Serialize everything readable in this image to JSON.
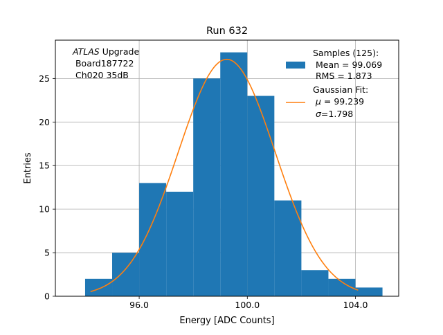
{
  "chart_data": {
    "type": "bar",
    "title": "Run 632",
    "xlabel": "Energy [ADC Counts]",
    "ylabel": "Entries",
    "xlim": [
      92.9,
      105.6
    ],
    "ylim": [
      0,
      29.4
    ],
    "xticks": [
      96,
      100,
      104
    ],
    "xtick_labels": [
      "96.0",
      "100.0",
      "104.0"
    ],
    "yticks": [
      0,
      5,
      10,
      15,
      20,
      25
    ],
    "ytick_labels": [
      "0",
      "5",
      "10",
      "15",
      "20",
      "25"
    ],
    "grid": true,
    "legend_position": "top-right",
    "histogram": {
      "bin_edges": [
        94,
        95,
        96,
        97,
        98,
        99,
        100,
        101,
        102,
        103,
        104,
        105
      ],
      "counts": [
        2,
        5,
        13,
        12,
        25,
        28,
        23,
        11,
        3,
        2,
        1
      ],
      "color": "#1f77b4"
    },
    "fit": {
      "type": "gaussian",
      "mu": 99.239,
      "sigma": 1.798,
      "peak": 27.2,
      "x_range": [
        94.2,
        104.1
      ],
      "color": "#ff7f0e"
    },
    "annotation": {
      "line1_italic": "ATLAS",
      "line1_rest": " Upgrade",
      "line2": " Board187722",
      "line3": " Ch020 35dB"
    },
    "legend": {
      "samples_header": "Samples (125):",
      "mean_line": " Mean = 99.069",
      "rms_line": " RMS = 1.873",
      "fit_header": "Gaussian Fit:",
      "mu_symbol": "μ",
      "mu_value": " = 99.239",
      "sigma_symbol": "σ",
      "sigma_value": "=1.798"
    }
  }
}
